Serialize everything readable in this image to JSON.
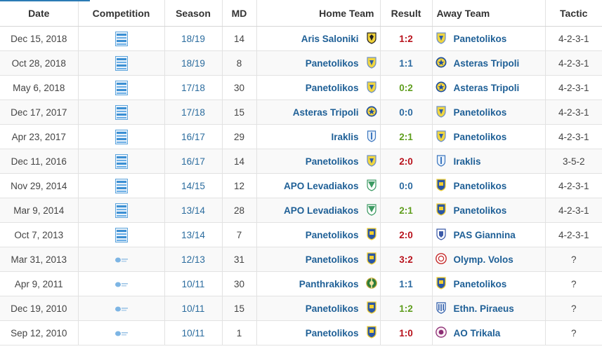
{
  "table": {
    "headers": {
      "date": "Date",
      "competition": "Competition",
      "season": "Season",
      "md": "MD",
      "home": "Home Team",
      "result": "Result",
      "away": "Away Team",
      "tactic": "Tactic"
    },
    "rows": [
      {
        "date": "Dec 15, 2018",
        "comp": "super-league",
        "season": "18/19",
        "md": "14",
        "home": "Aris Saloniki",
        "home_crest": "aris",
        "result": "1:2",
        "outcome": "loss",
        "away": "Panetolikos",
        "away_crest": "panetolikos-new",
        "tactic": "4-2-3-1"
      },
      {
        "date": "Oct 28, 2018",
        "comp": "super-league",
        "season": "18/19",
        "md": "8",
        "home": "Panetolikos",
        "home_crest": "panetolikos-new",
        "result": "1:1",
        "outcome": "draw",
        "away": "Asteras Tripoli",
        "away_crest": "asteras",
        "tactic": "4-2-3-1"
      },
      {
        "date": "May 6, 2018",
        "comp": "super-league",
        "season": "17/18",
        "md": "30",
        "home": "Panetolikos",
        "home_crest": "panetolikos-new",
        "result": "0:2",
        "outcome": "win",
        "away": "Asteras Tripoli",
        "away_crest": "asteras",
        "tactic": "4-2-3-1"
      },
      {
        "date": "Dec 17, 2017",
        "comp": "super-league",
        "season": "17/18",
        "md": "15",
        "home": "Asteras Tripoli",
        "home_crest": "asteras",
        "result": "0:0",
        "outcome": "draw",
        "away": "Panetolikos",
        "away_crest": "panetolikos-new",
        "tactic": "4-2-3-1"
      },
      {
        "date": "Apr 23, 2017",
        "comp": "super-league",
        "season": "16/17",
        "md": "29",
        "home": "Iraklis",
        "home_crest": "iraklis",
        "result": "2:1",
        "outcome": "win",
        "away": "Panetolikos",
        "away_crest": "panetolikos-new",
        "tactic": "4-2-3-1"
      },
      {
        "date": "Dec 11, 2016",
        "comp": "super-league",
        "season": "16/17",
        "md": "14",
        "home": "Panetolikos",
        "home_crest": "panetolikos-new",
        "result": "2:0",
        "outcome": "loss",
        "away": "Iraklis",
        "away_crest": "iraklis",
        "tactic": "3-5-2"
      },
      {
        "date": "Nov 29, 2014",
        "comp": "super-league",
        "season": "14/15",
        "md": "12",
        "home": "APO Levadiakos",
        "home_crest": "levadiakos",
        "result": "0:0",
        "outcome": "draw",
        "away": "Panetolikos",
        "away_crest": "panetolikos-old",
        "tactic": "4-2-3-1"
      },
      {
        "date": "Mar 9, 2014",
        "comp": "super-league",
        "season": "13/14",
        "md": "28",
        "home": "APO Levadiakos",
        "home_crest": "levadiakos",
        "result": "2:1",
        "outcome": "win",
        "away": "Panetolikos",
        "away_crest": "panetolikos-old",
        "tactic": "4-2-3-1"
      },
      {
        "date": "Oct 7, 2013",
        "comp": "super-league",
        "season": "13/14",
        "md": "7",
        "home": "Panetolikos",
        "home_crest": "panetolikos-old",
        "result": "2:0",
        "outcome": "loss",
        "away": "PAS Giannina",
        "away_crest": "giannina",
        "tactic": "4-2-3-1"
      },
      {
        "date": "Mar 31, 2013",
        "comp": "football-league",
        "season": "12/13",
        "md": "31",
        "home": "Panetolikos",
        "home_crest": "panetolikos-old",
        "result": "3:2",
        "outcome": "loss",
        "away": "Olymp. Volos",
        "away_crest": "volos",
        "tactic": "?"
      },
      {
        "date": "Apr 9, 2011",
        "comp": "football-league",
        "season": "10/11",
        "md": "30",
        "home": "Panthrakikos",
        "home_crest": "panthrakikos",
        "result": "1:1",
        "outcome": "draw",
        "away": "Panetolikos",
        "away_crest": "panetolikos-old",
        "tactic": "?"
      },
      {
        "date": "Dec 19, 2010",
        "comp": "football-league",
        "season": "10/11",
        "md": "15",
        "home": "Panetolikos",
        "home_crest": "panetolikos-old",
        "result": "1:2",
        "outcome": "win",
        "away": "Ethn. Piraeus",
        "away_crest": "ethnikos",
        "tactic": "?"
      },
      {
        "date": "Sep 12, 2010",
        "comp": "football-league",
        "season": "10/11",
        "md": "1",
        "home": "Panetolikos",
        "home_crest": "panetolikos-old",
        "result": "1:0",
        "outcome": "loss",
        "away": "AO Trikala",
        "away_crest": "trikala",
        "tactic": "?"
      }
    ]
  },
  "colors": {
    "link": "#1e5f96",
    "season": "#2b6c9e",
    "loss": "#b8111b",
    "draw": "#2c6aa0",
    "win": "#5e9d1c"
  }
}
